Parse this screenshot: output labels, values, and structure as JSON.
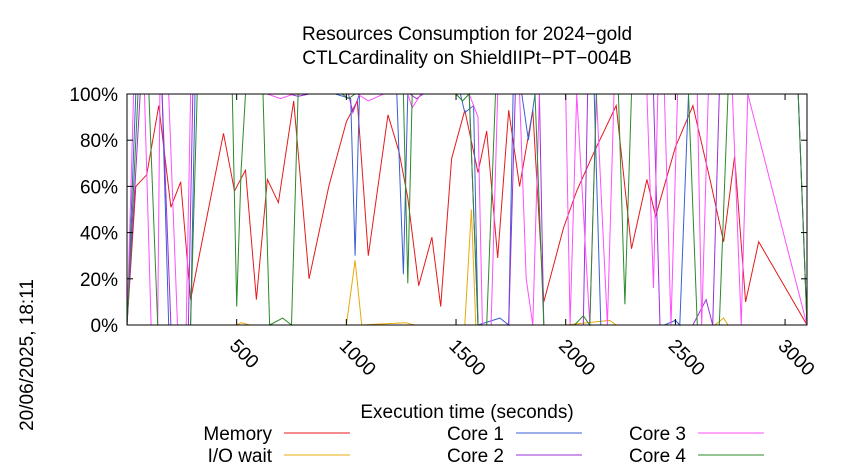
{
  "chart_data": {
    "type": "line",
    "title_line1": "Resources Consumption for 2024−gold",
    "title_line2": "CTLCardinality on ShieldIIPt−PT−004B",
    "xlabel": "Execution time (seconds)",
    "side_label": "20/06/2025, 18:11",
    "xlim": [
      0,
      3100
    ],
    "ylim": [
      0,
      100
    ],
    "x_ticks": [
      500,
      1000,
      1500,
      2000,
      2500,
      3000
    ],
    "y_ticks": [
      0,
      20,
      40,
      60,
      80,
      100
    ],
    "y_tick_labels": [
      "0%",
      "20%",
      "40%",
      "60%",
      "80%",
      "100%"
    ],
    "grid": false,
    "legend_placement": "bottom",
    "series": [
      {
        "name": "Memory",
        "color": "#e41a1c",
        "points": [
          [
            0,
            0
          ],
          [
            40,
            60
          ],
          [
            90,
            65
          ],
          [
            145,
            95
          ],
          [
            200,
            51
          ],
          [
            245,
            62
          ],
          [
            290,
            11
          ],
          [
            350,
            40
          ],
          [
            440,
            83
          ],
          [
            490,
            58
          ],
          [
            540,
            67
          ],
          [
            590,
            11
          ],
          [
            640,
            63
          ],
          [
            690,
            53
          ],
          [
            760,
            97
          ],
          [
            830,
            20
          ],
          [
            920,
            60
          ],
          [
            1000,
            88
          ],
          [
            1050,
            97
          ],
          [
            1100,
            30
          ],
          [
            1190,
            91
          ],
          [
            1240,
            75
          ],
          [
            1280,
            55
          ],
          [
            1330,
            17
          ],
          [
            1390,
            38
          ],
          [
            1430,
            8
          ],
          [
            1480,
            72
          ],
          [
            1540,
            93
          ],
          [
            1600,
            66
          ],
          [
            1640,
            84
          ],
          [
            1690,
            29
          ],
          [
            1740,
            93
          ],
          [
            1790,
            60
          ],
          [
            1850,
            93
          ],
          [
            1900,
            10
          ],
          [
            1990,
            42
          ],
          [
            2050,
            58
          ],
          [
            2130,
            75
          ],
          [
            2230,
            95
          ],
          [
            2300,
            33
          ],
          [
            2370,
            63
          ],
          [
            2410,
            47
          ],
          [
            2500,
            77
          ],
          [
            2580,
            95
          ],
          [
            2660,
            62
          ],
          [
            2720,
            36
          ],
          [
            2770,
            73
          ],
          [
            2820,
            10
          ],
          [
            2880,
            36
          ],
          [
            3100,
            0
          ]
        ]
      },
      {
        "name": "I/O wait",
        "color": "#e8a90c",
        "points": [
          [
            0,
            0
          ],
          [
            500,
            0
          ],
          [
            520,
            1
          ],
          [
            560,
            0
          ],
          [
            1000,
            0
          ],
          [
            1040,
            28
          ],
          [
            1070,
            0
          ],
          [
            1270,
            1
          ],
          [
            1310,
            0
          ],
          [
            1540,
            0
          ],
          [
            1570,
            50
          ],
          [
            1590,
            0
          ],
          [
            2000,
            0
          ],
          [
            2200,
            2
          ],
          [
            2230,
            0
          ],
          [
            2680,
            0
          ],
          [
            2720,
            3
          ],
          [
            2740,
            0
          ],
          [
            3100,
            0
          ]
        ]
      },
      {
        "name": "Core 1",
        "color": "#3a5fd4",
        "points": [
          [
            0,
            0
          ],
          [
            40,
            100
          ],
          [
            160,
            100
          ],
          [
            190,
            0
          ],
          [
            290,
            0
          ],
          [
            310,
            100
          ],
          [
            950,
            100
          ],
          [
            1020,
            98
          ],
          [
            1040,
            30
          ],
          [
            1060,
            100
          ],
          [
            1230,
            100
          ],
          [
            1260,
            22
          ],
          [
            1280,
            100
          ],
          [
            1520,
            100
          ],
          [
            1540,
            92
          ],
          [
            1580,
            95
          ],
          [
            1600,
            0
          ],
          [
            1700,
            3
          ],
          [
            1740,
            0
          ],
          [
            1760,
            100
          ],
          [
            1800,
            100
          ],
          [
            1830,
            80
          ],
          [
            1860,
            100
          ],
          [
            2130,
            100
          ],
          [
            2160,
            0
          ],
          [
            2450,
            0
          ],
          [
            2500,
            2
          ],
          [
            2520,
            0
          ],
          [
            2560,
            100
          ],
          [
            3060,
            100
          ],
          [
            3100,
            0
          ]
        ]
      },
      {
        "name": "Core 2",
        "color": "#9b30d9",
        "points": [
          [
            0,
            0
          ],
          [
            60,
            100
          ],
          [
            160,
            100
          ],
          [
            200,
            0
          ],
          [
            280,
            0
          ],
          [
            300,
            100
          ],
          [
            740,
            100
          ],
          [
            780,
            99
          ],
          [
            830,
            100
          ],
          [
            1010,
            100
          ],
          [
            1030,
            92
          ],
          [
            1060,
            100
          ],
          [
            1290,
            100
          ],
          [
            1320,
            98
          ],
          [
            1350,
            100
          ],
          [
            1560,
            100
          ],
          [
            1600,
            0
          ],
          [
            1740,
            0
          ],
          [
            1770,
            100
          ],
          [
            1880,
            100
          ],
          [
            1900,
            0
          ],
          [
            2080,
            0
          ],
          [
            2100,
            100
          ],
          [
            2400,
            100
          ],
          [
            2430,
            0
          ],
          [
            2580,
            0
          ],
          [
            2640,
            11
          ],
          [
            2670,
            0
          ],
          [
            2700,
            100
          ],
          [
            3060,
            100
          ],
          [
            3100,
            0
          ]
        ]
      },
      {
        "name": "Core 3",
        "color": "#ff4fff",
        "points": [
          [
            0,
            0
          ],
          [
            30,
            100
          ],
          [
            80,
            100
          ],
          [
            110,
            0
          ],
          [
            140,
            0
          ],
          [
            150,
            100
          ],
          [
            190,
            100
          ],
          [
            230,
            0
          ],
          [
            270,
            0
          ],
          [
            290,
            100
          ],
          [
            540,
            100
          ],
          [
            560,
            100
          ],
          [
            640,
            100
          ],
          [
            700,
            98
          ],
          [
            760,
            100
          ],
          [
            1050,
            100
          ],
          [
            1100,
            97
          ],
          [
            1170,
            100
          ],
          [
            1280,
            100
          ],
          [
            1300,
            94
          ],
          [
            1340,
            100
          ],
          [
            1560,
            100
          ],
          [
            1600,
            90
          ],
          [
            1620,
            0
          ],
          [
            1660,
            0
          ],
          [
            1690,
            100
          ],
          [
            1790,
            100
          ],
          [
            1820,
            20
          ],
          [
            1850,
            0
          ],
          [
            1880,
            100
          ],
          [
            2000,
            100
          ],
          [
            2020,
            0
          ],
          [
            2050,
            100
          ],
          [
            2110,
            0
          ],
          [
            2140,
            100
          ],
          [
            2190,
            0
          ],
          [
            2220,
            100
          ],
          [
            2370,
            100
          ],
          [
            2400,
            16
          ],
          [
            2420,
            100
          ],
          [
            2450,
            100
          ],
          [
            2480,
            0
          ],
          [
            2510,
            100
          ],
          [
            2600,
            100
          ],
          [
            2620,
            0
          ],
          [
            2650,
            100
          ],
          [
            2760,
            100
          ],
          [
            2800,
            0
          ],
          [
            2830,
            100
          ],
          [
            3100,
            0
          ]
        ]
      },
      {
        "name": "Core 4",
        "color": "#2b8a2b",
        "points": [
          [
            0,
            0
          ],
          [
            50,
            100
          ],
          [
            100,
            100
          ],
          [
            140,
            0
          ],
          [
            290,
            0
          ],
          [
            320,
            100
          ],
          [
            480,
            100
          ],
          [
            500,
            8
          ],
          [
            520,
            67
          ],
          [
            540,
            100
          ],
          [
            620,
            100
          ],
          [
            650,
            0
          ],
          [
            710,
            3
          ],
          [
            750,
            0
          ],
          [
            780,
            100
          ],
          [
            980,
            100
          ],
          [
            1010,
            98
          ],
          [
            1040,
            100
          ],
          [
            1260,
            100
          ],
          [
            1280,
            18
          ],
          [
            1300,
            100
          ],
          [
            1500,
            100
          ],
          [
            1530,
            97
          ],
          [
            1560,
            100
          ],
          [
            1600,
            0
          ],
          [
            1640,
            0
          ],
          [
            1680,
            100
          ],
          [
            1860,
            100
          ],
          [
            1900,
            0
          ],
          [
            2040,
            0
          ],
          [
            2080,
            4
          ],
          [
            2110,
            0
          ],
          [
            2140,
            100
          ],
          [
            2240,
            100
          ],
          [
            2270,
            9
          ],
          [
            2300,
            100
          ],
          [
            2560,
            100
          ],
          [
            2600,
            0
          ],
          [
            2700,
            0
          ],
          [
            2740,
            100
          ],
          [
            3060,
            100
          ],
          [
            3100,
            0
          ]
        ]
      }
    ]
  }
}
